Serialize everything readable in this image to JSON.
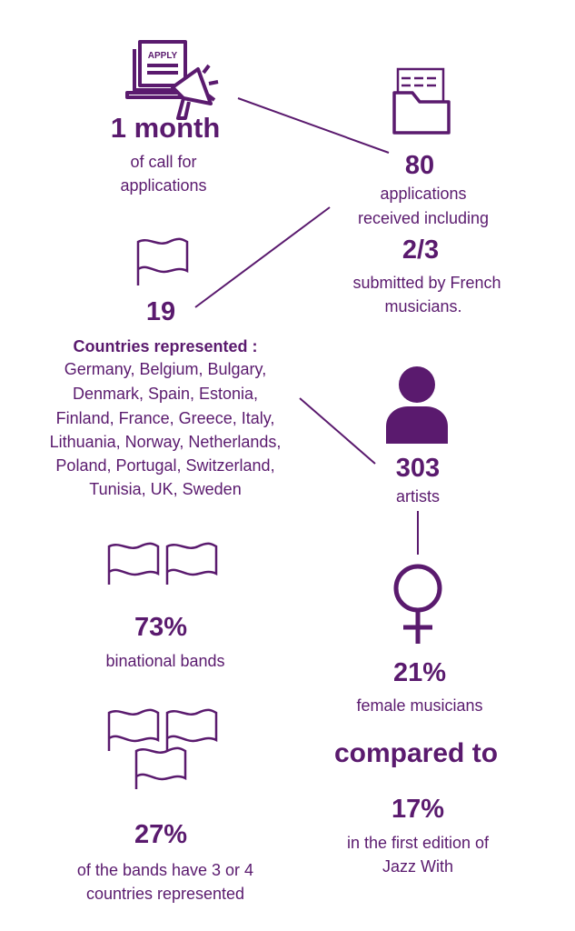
{
  "colors": {
    "accent": "#5a1a6e",
    "background": "#ffffff"
  },
  "call": {
    "icon": "apply-laptop-megaphone-icon",
    "icon_text": "APPLY",
    "value": "1 month",
    "lines": [
      "of call for",
      "applications"
    ]
  },
  "applications": {
    "icon": "folder-document-icon",
    "value": "80",
    "lines": [
      "applications",
      "received including"
    ],
    "sub_value": "2/3",
    "sub_lines": [
      "submitted by French",
      "musicians."
    ]
  },
  "countries": {
    "icon": "flag-icon",
    "value": "19",
    "heading": "Countries represented :",
    "lines": [
      "Germany, Belgium, Bulgary,",
      "Denmark, Spain, Estonia,",
      "Finland, France, Greece, Italy,",
      "Lithuania, Norway, Netherlands,",
      "Poland, Portugal, Switzerland,",
      "Tunisia, UK, Sweden"
    ]
  },
  "artists": {
    "icon": "person-icon",
    "value": "303",
    "label": "artists"
  },
  "female": {
    "icon": "female-symbol-icon",
    "value": "21%",
    "label": "female musicians",
    "compare": "compared to",
    "prev_value": "17%",
    "prev_lines": [
      "in the first edition of",
      "Jazz With"
    ]
  },
  "binational": {
    "icon": "two-flags-icon",
    "value": "73%",
    "label": "binational bands"
  },
  "multinational": {
    "icon": "three-flags-icon",
    "value": "27%",
    "lines": [
      "of the bands have 3 or 4",
      "countries represented"
    ]
  }
}
